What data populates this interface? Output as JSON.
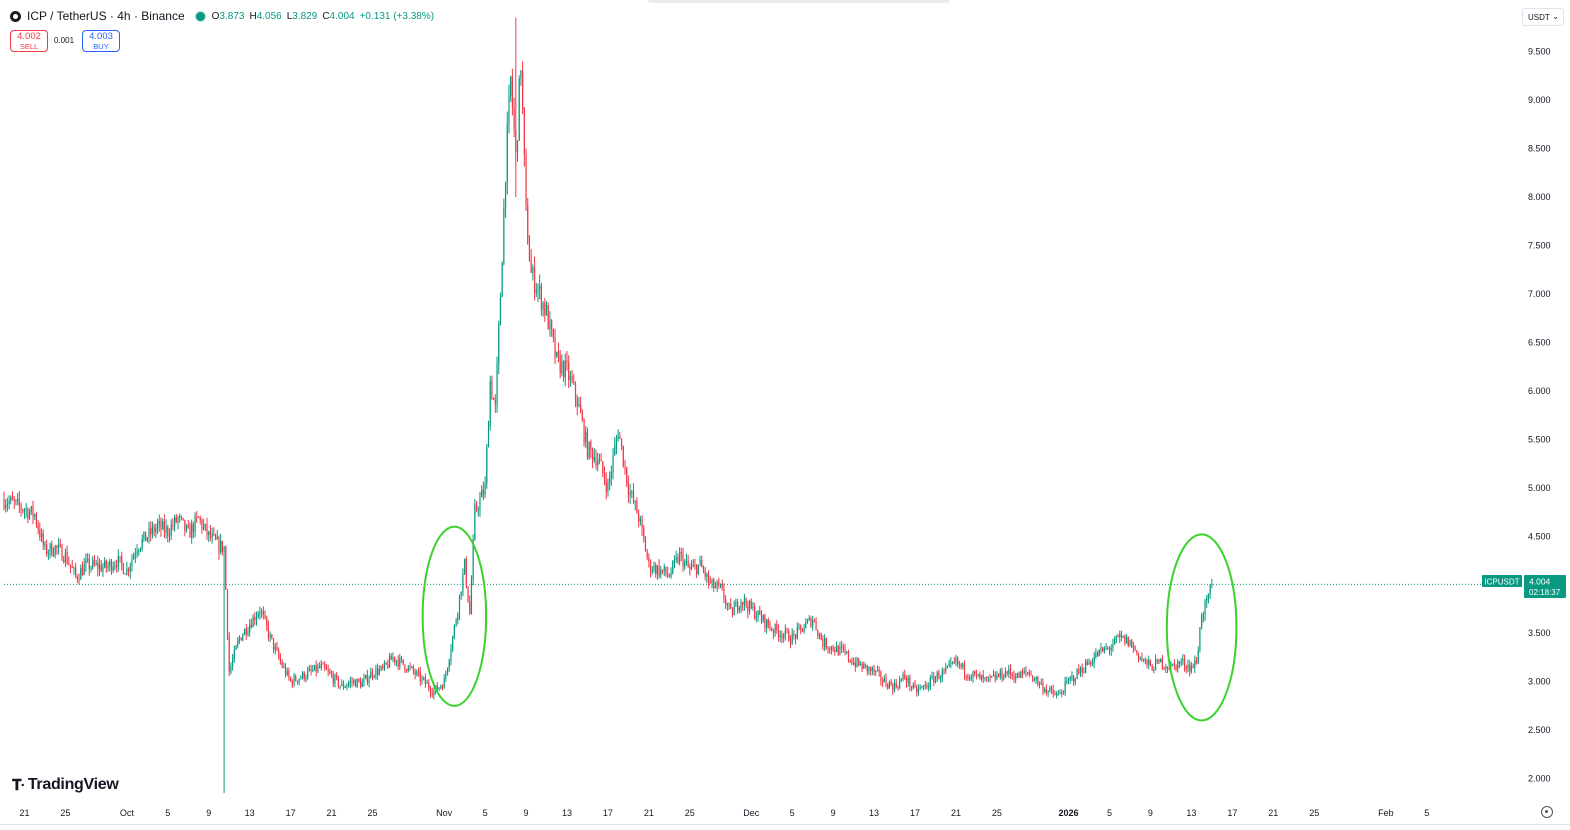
{
  "header": {
    "title": "ICP / TetherUS · 4h · Binance",
    "ohlc": {
      "open_label": "O",
      "open": "3.873",
      "high_label": "H",
      "high": "4.056",
      "low_label": "L",
      "low": "3.829",
      "close_label": "C",
      "close": "4.004",
      "change": "+0.131 (+3.38%)"
    }
  },
  "trade": {
    "sell_price": "4.002",
    "sell_label": "SELL",
    "spread": "0.001",
    "buy_price": "4.003",
    "buy_label": "BUY"
  },
  "currency": {
    "selected": "USDT"
  },
  "brand": {
    "logo_icon": "tradingview-logo-icon",
    "name": "TradingView"
  },
  "price_label": {
    "symbol": "ICPUSDT",
    "price": "4.004",
    "countdown": "02:18:37"
  },
  "colors": {
    "up": "#089981",
    "down": "#f23645",
    "circle": "#3cd22c",
    "price_line": "#089981"
  },
  "chart_data": {
    "type": "candlestick",
    "symbol": "ICPUSDT",
    "interval": "4h",
    "ylim": [
      1.8,
      9.95
    ],
    "y_ticks": [
      "2.000",
      "2.500",
      "3.000",
      "3.500",
      "4.000",
      "4.500",
      "5.000",
      "5.500",
      "6.000",
      "6.500",
      "7.000",
      "7.500",
      "8.000",
      "8.500",
      "9.000",
      "9.500"
    ],
    "x_ticks": [
      {
        "label": "21",
        "date": "2025-09-21",
        "bold": false
      },
      {
        "label": "25",
        "date": "2025-09-25",
        "bold": false
      },
      {
        "label": "Oct",
        "date": "2025-10-01",
        "bold": false
      },
      {
        "label": "5",
        "date": "2025-10-05",
        "bold": false
      },
      {
        "label": "9",
        "date": "2025-10-09",
        "bold": false
      },
      {
        "label": "13",
        "date": "2025-10-13",
        "bold": false
      },
      {
        "label": "17",
        "date": "2025-10-17",
        "bold": false
      },
      {
        "label": "21",
        "date": "2025-10-21",
        "bold": false
      },
      {
        "label": "25",
        "date": "2025-10-25",
        "bold": false
      },
      {
        "label": "Nov",
        "date": "2025-11-01",
        "bold": false
      },
      {
        "label": "5",
        "date": "2025-11-05",
        "bold": false
      },
      {
        "label": "9",
        "date": "2025-11-09",
        "bold": false
      },
      {
        "label": "13",
        "date": "2025-11-13",
        "bold": false
      },
      {
        "label": "17",
        "date": "2025-11-17",
        "bold": false
      },
      {
        "label": "21",
        "date": "2025-11-21",
        "bold": false
      },
      {
        "label": "25",
        "date": "2025-11-25",
        "bold": false
      },
      {
        "label": "Dec",
        "date": "2025-12-01",
        "bold": false
      },
      {
        "label": "5",
        "date": "2025-12-05",
        "bold": false
      },
      {
        "label": "9",
        "date": "2025-12-09",
        "bold": false
      },
      {
        "label": "13",
        "date": "2025-12-13",
        "bold": false
      },
      {
        "label": "17",
        "date": "2025-12-17",
        "bold": false
      },
      {
        "label": "21",
        "date": "2025-12-21",
        "bold": false
      },
      {
        "label": "25",
        "date": "2025-12-25",
        "bold": false
      },
      {
        "label": "2026",
        "date": "2026-01-01",
        "bold": true
      },
      {
        "label": "5",
        "date": "2026-01-05",
        "bold": false
      },
      {
        "label": "9",
        "date": "2026-01-09",
        "bold": false
      },
      {
        "label": "13",
        "date": "2026-01-13",
        "bold": false
      },
      {
        "label": "17",
        "date": "2026-01-17",
        "bold": false
      },
      {
        "label": "21",
        "date": "2026-01-21",
        "bold": false
      },
      {
        "label": "25",
        "date": "2026-01-25",
        "bold": false
      },
      {
        "label": "Feb",
        "date": "2026-02-01",
        "bold": false
      },
      {
        "label": "5",
        "date": "2026-02-05",
        "bold": false
      }
    ],
    "x_range": [
      "2025-09-19",
      "2026-02-10"
    ],
    "last_price": 4.004,
    "price_path": [
      [
        "2025-09-19",
        4.88
      ],
      [
        "2025-09-21",
        4.78
      ],
      [
        "2025-09-22",
        4.72
      ],
      [
        "2025-09-23",
        4.35
      ],
      [
        "2025-09-24",
        4.38
      ],
      [
        "2025-09-25",
        4.3
      ],
      [
        "2025-09-26",
        4.08
      ],
      [
        "2025-09-27",
        4.2
      ],
      [
        "2025-09-29",
        4.18
      ],
      [
        "2025-09-30",
        4.25
      ],
      [
        "2025-10-01",
        4.15
      ],
      [
        "2025-10-02",
        4.4
      ],
      [
        "2025-10-04",
        4.6
      ],
      [
        "2025-10-05",
        4.55
      ],
      [
        "2025-10-06",
        4.68
      ],
      [
        "2025-10-07",
        4.52
      ],
      [
        "2025-10-08",
        4.68
      ],
      [
        "2025-10-09",
        4.5
      ],
      [
        "2025-10-10",
        4.4
      ],
      [
        "2025-10-10T12",
        4.38
      ],
      [
        "2025-10-11",
        3.1
      ],
      [
        "2025-10-12",
        3.45
      ],
      [
        "2025-10-13",
        3.6
      ],
      [
        "2025-10-14",
        3.75
      ],
      [
        "2025-10-15",
        3.45
      ],
      [
        "2025-10-16",
        3.2
      ],
      [
        "2025-10-17",
        3.0
      ],
      [
        "2025-10-18",
        3.05
      ],
      [
        "2025-10-19",
        3.1
      ],
      [
        "2025-10-20",
        3.15
      ],
      [
        "2025-10-21",
        3.05
      ],
      [
        "2025-10-22",
        2.95
      ],
      [
        "2025-10-23",
        3.0
      ],
      [
        "2025-10-24",
        2.98
      ],
      [
        "2025-10-25",
        3.1
      ],
      [
        "2025-10-26",
        3.12
      ],
      [
        "2025-10-27",
        3.25
      ],
      [
        "2025-10-28",
        3.18
      ],
      [
        "2025-10-29",
        3.1
      ],
      [
        "2025-10-30",
        3.0
      ],
      [
        "2025-10-31",
        2.9
      ],
      [
        "2025-11-01",
        3.0
      ],
      [
        "2025-11-02",
        3.55
      ],
      [
        "2025-11-03",
        4.2
      ],
      [
        "2025-11-03T12",
        3.7
      ],
      [
        "2025-11-04",
        4.75
      ],
      [
        "2025-11-05",
        5.0
      ],
      [
        "2025-11-05T12",
        6.1
      ],
      [
        "2025-11-06",
        5.8
      ],
      [
        "2025-11-06T12",
        7.0
      ],
      [
        "2025-11-07",
        8.3
      ],
      [
        "2025-11-07T12",
        9.2
      ],
      [
        "2025-11-08",
        8.4
      ],
      [
        "2025-11-08T12",
        9.4
      ],
      [
        "2025-11-09",
        7.8
      ],
      [
        "2025-11-09T12",
        7.2
      ],
      [
        "2025-11-10",
        7.1
      ],
      [
        "2025-11-11",
        6.8
      ],
      [
        "2025-11-12",
        6.3
      ],
      [
        "2025-11-13",
        6.2
      ],
      [
        "2025-11-14",
        5.9
      ],
      [
        "2025-11-15",
        5.4
      ],
      [
        "2025-11-16",
        5.3
      ],
      [
        "2025-11-17",
        5.0
      ],
      [
        "2025-11-18",
        5.6
      ],
      [
        "2025-11-19",
        5.0
      ],
      [
        "2025-11-20",
        4.7
      ],
      [
        "2025-11-21",
        4.2
      ],
      [
        "2025-11-22",
        4.15
      ],
      [
        "2025-11-23",
        4.1
      ],
      [
        "2025-11-24",
        4.3
      ],
      [
        "2025-11-25",
        4.15
      ],
      [
        "2025-11-26",
        4.2
      ],
      [
        "2025-11-27",
        4.0
      ],
      [
        "2025-11-28",
        3.95
      ],
      [
        "2025-11-29",
        3.7
      ],
      [
        "2025-11-30",
        3.85
      ],
      [
        "2025-12-01",
        3.75
      ],
      [
        "2025-12-02",
        3.65
      ],
      [
        "2025-12-03",
        3.55
      ],
      [
        "2025-12-04",
        3.5
      ],
      [
        "2025-12-05",
        3.45
      ],
      [
        "2025-12-06",
        3.55
      ],
      [
        "2025-12-07",
        3.65
      ],
      [
        "2025-12-08",
        3.4
      ],
      [
        "2025-12-09",
        3.35
      ],
      [
        "2025-12-10",
        3.3
      ],
      [
        "2025-12-11",
        3.2
      ],
      [
        "2025-12-12",
        3.15
      ],
      [
        "2025-12-13",
        3.1
      ],
      [
        "2025-12-14",
        3.0
      ],
      [
        "2025-12-15",
        2.95
      ],
      [
        "2025-12-16",
        3.05
      ],
      [
        "2025-12-17",
        2.9
      ],
      [
        "2025-12-18",
        2.95
      ],
      [
        "2025-12-19",
        3.05
      ],
      [
        "2025-12-20",
        3.1
      ],
      [
        "2025-12-21",
        3.2
      ],
      [
        "2025-12-22",
        3.1
      ],
      [
        "2025-12-23",
        3.05
      ],
      [
        "2025-12-24",
        3.0
      ],
      [
        "2025-12-25",
        3.05
      ],
      [
        "2025-12-26",
        3.1
      ],
      [
        "2025-12-27",
        3.05
      ],
      [
        "2025-12-28",
        3.1
      ],
      [
        "2025-12-29",
        3.0
      ],
      [
        "2025-12-30",
        2.9
      ],
      [
        "2025-12-31",
        2.85
      ],
      [
        "2026-01-01",
        3.0
      ],
      [
        "2026-01-02",
        3.1
      ],
      [
        "2026-01-03",
        3.2
      ],
      [
        "2026-01-04",
        3.3
      ],
      [
        "2026-01-05",
        3.35
      ],
      [
        "2026-01-06",
        3.45
      ],
      [
        "2026-01-07",
        3.4
      ],
      [
        "2026-01-08",
        3.25
      ],
      [
        "2026-01-09",
        3.15
      ],
      [
        "2026-01-10",
        3.2
      ],
      [
        "2026-01-11",
        3.15
      ],
      [
        "2026-01-12",
        3.2
      ],
      [
        "2026-01-13",
        3.15
      ],
      [
        "2026-01-13T12",
        3.2
      ],
      [
        "2026-01-14",
        3.7
      ],
      [
        "2026-01-14T12",
        3.8
      ],
      [
        "2026-01-15",
        4.004
      ]
    ],
    "wick_extremes": [
      {
        "date": "2025-10-10T12",
        "low": 1.85,
        "high": 4.4
      },
      {
        "date": "2025-11-08",
        "low": 8.0,
        "high": 9.85
      }
    ],
    "annotations": [
      {
        "type": "ellipse",
        "center": [
          "2025-11-02",
          3.44
        ],
        "semi_axes_days": 3.1,
        "y_span": [
          2.75,
          4.6
        ]
      },
      {
        "type": "ellipse",
        "center": [
          "2026-01-14",
          3.38
        ],
        "semi_axes_days": 3.4,
        "y_span": [
          2.6,
          4.52
        ]
      }
    ]
  }
}
